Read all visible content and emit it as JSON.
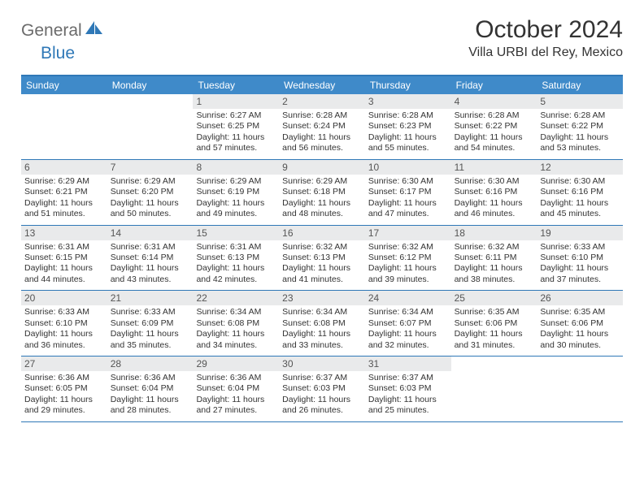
{
  "brand": {
    "part1": "General",
    "part2": "Blue"
  },
  "title": "October 2024",
  "location": "Villa URBI del Rey, Mexico",
  "colors": {
    "accent": "#3f8ac9",
    "accent_border": "#2f78b7",
    "daynum_bg": "#e9eaeb",
    "text": "#333333"
  },
  "weekdays": [
    "Sunday",
    "Monday",
    "Tuesday",
    "Wednesday",
    "Thursday",
    "Friday",
    "Saturday"
  ],
  "weeks": [
    [
      {
        "n": "",
        "lines": []
      },
      {
        "n": "",
        "lines": []
      },
      {
        "n": "1",
        "lines": [
          "Sunrise: 6:27 AM",
          "Sunset: 6:25 PM",
          "Daylight: 11 hours",
          "and 57 minutes."
        ]
      },
      {
        "n": "2",
        "lines": [
          "Sunrise: 6:28 AM",
          "Sunset: 6:24 PM",
          "Daylight: 11 hours",
          "and 56 minutes."
        ]
      },
      {
        "n": "3",
        "lines": [
          "Sunrise: 6:28 AM",
          "Sunset: 6:23 PM",
          "Daylight: 11 hours",
          "and 55 minutes."
        ]
      },
      {
        "n": "4",
        "lines": [
          "Sunrise: 6:28 AM",
          "Sunset: 6:22 PM",
          "Daylight: 11 hours",
          "and 54 minutes."
        ]
      },
      {
        "n": "5",
        "lines": [
          "Sunrise: 6:28 AM",
          "Sunset: 6:22 PM",
          "Daylight: 11 hours",
          "and 53 minutes."
        ]
      }
    ],
    [
      {
        "n": "6",
        "lines": [
          "Sunrise: 6:29 AM",
          "Sunset: 6:21 PM",
          "Daylight: 11 hours",
          "and 51 minutes."
        ]
      },
      {
        "n": "7",
        "lines": [
          "Sunrise: 6:29 AM",
          "Sunset: 6:20 PM",
          "Daylight: 11 hours",
          "and 50 minutes."
        ]
      },
      {
        "n": "8",
        "lines": [
          "Sunrise: 6:29 AM",
          "Sunset: 6:19 PM",
          "Daylight: 11 hours",
          "and 49 minutes."
        ]
      },
      {
        "n": "9",
        "lines": [
          "Sunrise: 6:29 AM",
          "Sunset: 6:18 PM",
          "Daylight: 11 hours",
          "and 48 minutes."
        ]
      },
      {
        "n": "10",
        "lines": [
          "Sunrise: 6:30 AM",
          "Sunset: 6:17 PM",
          "Daylight: 11 hours",
          "and 47 minutes."
        ]
      },
      {
        "n": "11",
        "lines": [
          "Sunrise: 6:30 AM",
          "Sunset: 6:16 PM",
          "Daylight: 11 hours",
          "and 46 minutes."
        ]
      },
      {
        "n": "12",
        "lines": [
          "Sunrise: 6:30 AM",
          "Sunset: 6:16 PM",
          "Daylight: 11 hours",
          "and 45 minutes."
        ]
      }
    ],
    [
      {
        "n": "13",
        "lines": [
          "Sunrise: 6:31 AM",
          "Sunset: 6:15 PM",
          "Daylight: 11 hours",
          "and 44 minutes."
        ]
      },
      {
        "n": "14",
        "lines": [
          "Sunrise: 6:31 AM",
          "Sunset: 6:14 PM",
          "Daylight: 11 hours",
          "and 43 minutes."
        ]
      },
      {
        "n": "15",
        "lines": [
          "Sunrise: 6:31 AM",
          "Sunset: 6:13 PM",
          "Daylight: 11 hours",
          "and 42 minutes."
        ]
      },
      {
        "n": "16",
        "lines": [
          "Sunrise: 6:32 AM",
          "Sunset: 6:13 PM",
          "Daylight: 11 hours",
          "and 41 minutes."
        ]
      },
      {
        "n": "17",
        "lines": [
          "Sunrise: 6:32 AM",
          "Sunset: 6:12 PM",
          "Daylight: 11 hours",
          "and 39 minutes."
        ]
      },
      {
        "n": "18",
        "lines": [
          "Sunrise: 6:32 AM",
          "Sunset: 6:11 PM",
          "Daylight: 11 hours",
          "and 38 minutes."
        ]
      },
      {
        "n": "19",
        "lines": [
          "Sunrise: 6:33 AM",
          "Sunset: 6:10 PM",
          "Daylight: 11 hours",
          "and 37 minutes."
        ]
      }
    ],
    [
      {
        "n": "20",
        "lines": [
          "Sunrise: 6:33 AM",
          "Sunset: 6:10 PM",
          "Daylight: 11 hours",
          "and 36 minutes."
        ]
      },
      {
        "n": "21",
        "lines": [
          "Sunrise: 6:33 AM",
          "Sunset: 6:09 PM",
          "Daylight: 11 hours",
          "and 35 minutes."
        ]
      },
      {
        "n": "22",
        "lines": [
          "Sunrise: 6:34 AM",
          "Sunset: 6:08 PM",
          "Daylight: 11 hours",
          "and 34 minutes."
        ]
      },
      {
        "n": "23",
        "lines": [
          "Sunrise: 6:34 AM",
          "Sunset: 6:08 PM",
          "Daylight: 11 hours",
          "and 33 minutes."
        ]
      },
      {
        "n": "24",
        "lines": [
          "Sunrise: 6:34 AM",
          "Sunset: 6:07 PM",
          "Daylight: 11 hours",
          "and 32 minutes."
        ]
      },
      {
        "n": "25",
        "lines": [
          "Sunrise: 6:35 AM",
          "Sunset: 6:06 PM",
          "Daylight: 11 hours",
          "and 31 minutes."
        ]
      },
      {
        "n": "26",
        "lines": [
          "Sunrise: 6:35 AM",
          "Sunset: 6:06 PM",
          "Daylight: 11 hours",
          "and 30 minutes."
        ]
      }
    ],
    [
      {
        "n": "27",
        "lines": [
          "Sunrise: 6:36 AM",
          "Sunset: 6:05 PM",
          "Daylight: 11 hours",
          "and 29 minutes."
        ]
      },
      {
        "n": "28",
        "lines": [
          "Sunrise: 6:36 AM",
          "Sunset: 6:04 PM",
          "Daylight: 11 hours",
          "and 28 minutes."
        ]
      },
      {
        "n": "29",
        "lines": [
          "Sunrise: 6:36 AM",
          "Sunset: 6:04 PM",
          "Daylight: 11 hours",
          "and 27 minutes."
        ]
      },
      {
        "n": "30",
        "lines": [
          "Sunrise: 6:37 AM",
          "Sunset: 6:03 PM",
          "Daylight: 11 hours",
          "and 26 minutes."
        ]
      },
      {
        "n": "31",
        "lines": [
          "Sunrise: 6:37 AM",
          "Sunset: 6:03 PM",
          "Daylight: 11 hours",
          "and 25 minutes."
        ]
      },
      {
        "n": "",
        "lines": []
      },
      {
        "n": "",
        "lines": []
      }
    ]
  ]
}
